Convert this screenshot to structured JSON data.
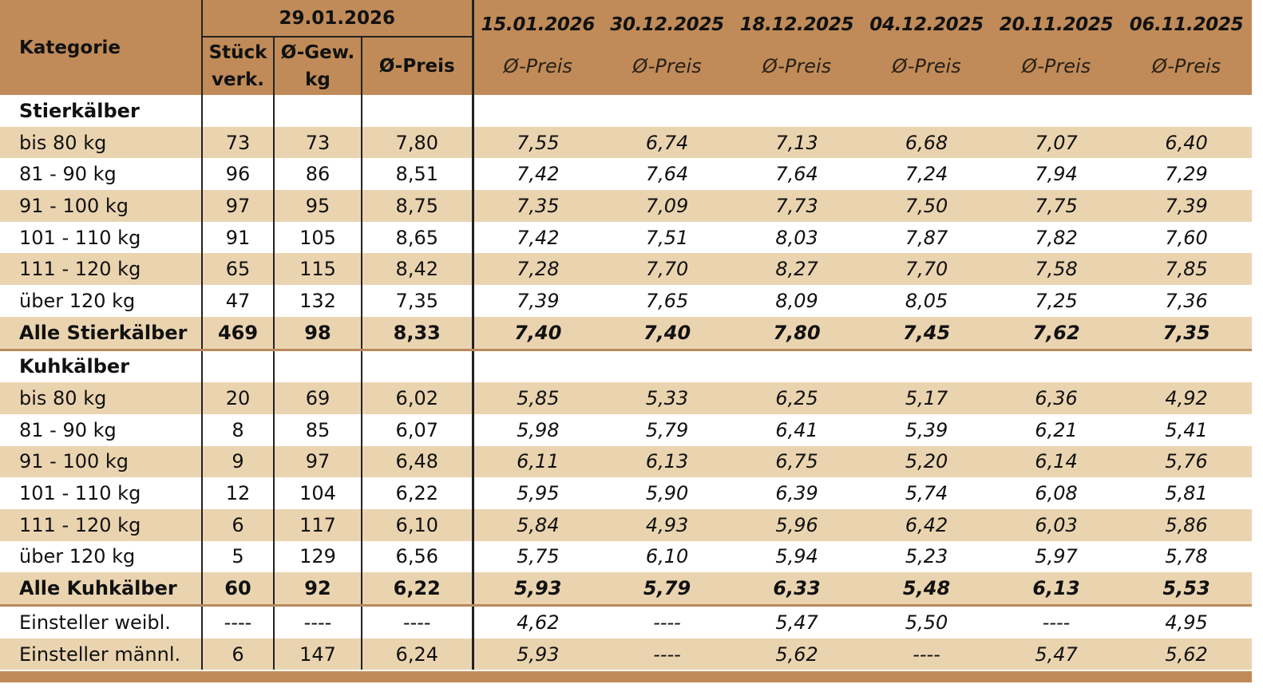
{
  "header": {
    "kategorie": "Kategorie",
    "current_date": "29.01.2026",
    "stueck_line1": "Stück",
    "stueck_line2": "verk.",
    "gew_line1": "Ø-Gew.",
    "gew_line2": "kg",
    "preis": "Ø-Preis",
    "history": [
      {
        "date": "15.01.2026",
        "label": "Ø-Preis"
      },
      {
        "date": "30.12.2025",
        "label": "Ø-Preis"
      },
      {
        "date": "18.12.2025",
        "label": "Ø-Preis"
      },
      {
        "date": "04.12.2025",
        "label": "Ø-Preis"
      },
      {
        "date": "20.11.2025",
        "label": "Ø-Preis"
      },
      {
        "date": "06.11.2025",
        "label": "Ø-Preis"
      }
    ]
  },
  "rows": [
    {
      "label": "Stierkälber",
      "type": "group",
      "cells": [
        "",
        "",
        "",
        "",
        "",
        "",
        "",
        "",
        ""
      ]
    },
    {
      "label": "bis 80 kg",
      "type": "alt",
      "cells": [
        "73",
        "73",
        "7,80",
        "7,55",
        "6,74",
        "7,13",
        "6,68",
        "7,07",
        "6,40"
      ]
    },
    {
      "label": "81 - 90 kg",
      "type": "white",
      "cells": [
        "96",
        "86",
        "8,51",
        "7,42",
        "7,64",
        "7,64",
        "7,24",
        "7,94",
        "7,29"
      ]
    },
    {
      "label": "91 - 100 kg",
      "type": "alt",
      "cells": [
        "97",
        "95",
        "8,75",
        "7,35",
        "7,09",
        "7,73",
        "7,50",
        "7,75",
        "7,39"
      ]
    },
    {
      "label": "101 - 110 kg",
      "type": "white",
      "cells": [
        "91",
        "105",
        "8,65",
        "7,42",
        "7,51",
        "8,03",
        "7,87",
        "7,82",
        "7,60"
      ]
    },
    {
      "label": "111 - 120 kg",
      "type": "alt",
      "cells": [
        "65",
        "115",
        "8,42",
        "7,28",
        "7,70",
        "8,27",
        "7,70",
        "7,58",
        "7,85"
      ]
    },
    {
      "label": "über 120 kg",
      "type": "white",
      "cells": [
        "47",
        "132",
        "7,35",
        "7,39",
        "7,65",
        "8,09",
        "8,05",
        "7,25",
        "7,36"
      ]
    },
    {
      "label": "Alle Stierkälber",
      "type": "total",
      "cells": [
        "469",
        "98",
        "8,33",
        "7,40",
        "7,40",
        "7,80",
        "7,45",
        "7,62",
        "7,35"
      ]
    },
    {
      "label": "Kuhkälber",
      "type": "group",
      "cells": [
        "",
        "",
        "",
        "",
        "",
        "",
        "",
        "",
        ""
      ]
    },
    {
      "label": "bis 80 kg",
      "type": "alt",
      "cells": [
        "20",
        "69",
        "6,02",
        "5,85",
        "5,33",
        "6,25",
        "5,17",
        "6,36",
        "4,92"
      ]
    },
    {
      "label": "81 - 90 kg",
      "type": "white",
      "cells": [
        "8",
        "85",
        "6,07",
        "5,98",
        "5,79",
        "6,41",
        "5,39",
        "6,21",
        "5,41"
      ]
    },
    {
      "label": "91 - 100 kg",
      "type": "alt",
      "cells": [
        "9",
        "97",
        "6,48",
        "6,11",
        "6,13",
        "6,75",
        "5,20",
        "6,14",
        "5,76"
      ]
    },
    {
      "label": "101 - 110 kg",
      "type": "white",
      "cells": [
        "12",
        "104",
        "6,22",
        "5,95",
        "5,90",
        "6,39",
        "5,74",
        "6,08",
        "5,81"
      ]
    },
    {
      "label": "111 - 120 kg",
      "type": "alt",
      "cells": [
        "6",
        "117",
        "6,10",
        "5,84",
        "4,93",
        "5,96",
        "6,42",
        "6,03",
        "5,86"
      ]
    },
    {
      "label": "über 120 kg",
      "type": "white",
      "cells": [
        "5",
        "129",
        "6,56",
        "5,75",
        "6,10",
        "5,94",
        "5,23",
        "5,97",
        "5,78"
      ]
    },
    {
      "label": "Alle Kuhkälber",
      "type": "total",
      "cells": [
        "60",
        "92",
        "6,22",
        "5,93",
        "5,79",
        "6,33",
        "5,48",
        "6,13",
        "5,53"
      ]
    },
    {
      "label": "Einsteller weibl.",
      "type": "white",
      "cells": [
        "----",
        "----",
        "----",
        "4,62",
        "----",
        "5,47",
        "5,50",
        "----",
        "4,95"
      ]
    },
    {
      "label": "Einsteller männl.",
      "type": "alt",
      "cells": [
        "6",
        "147",
        "6,24",
        "5,93",
        "----",
        "5,62",
        "----",
        "5,47",
        "5,62"
      ]
    }
  ],
  "colors": {
    "header_bg": "#c08b58",
    "band_bg": "#ead4b0",
    "separator": "#b9895c"
  }
}
